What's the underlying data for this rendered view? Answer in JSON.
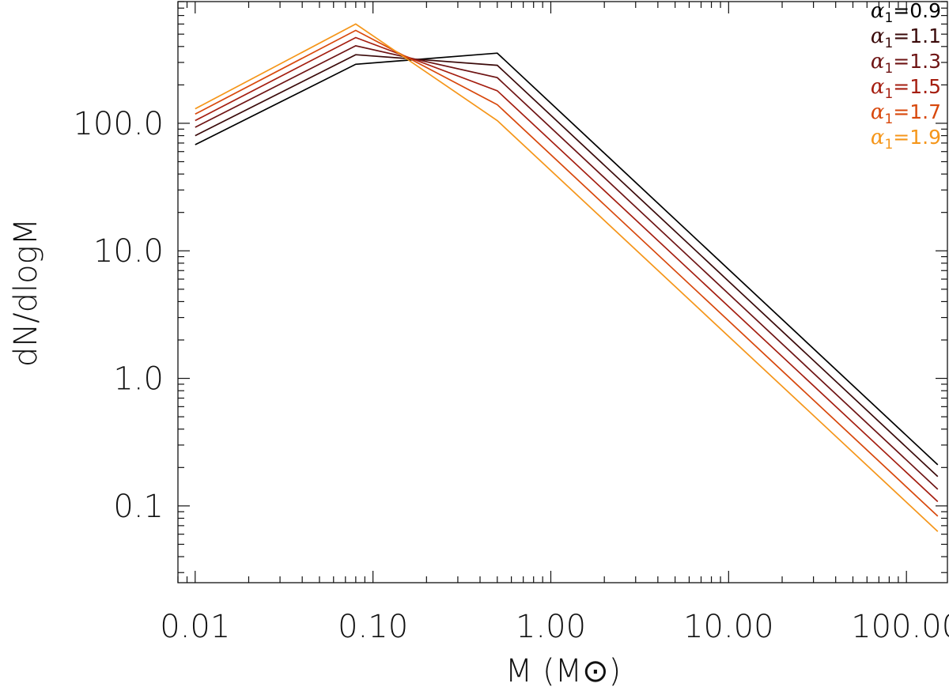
{
  "chart_data": {
    "type": "line",
    "title": "",
    "xlabel": "M (M",
    "xlabel_symbol": "⊙",
    "xlabel_close": ")",
    "ylabel": "dN/dlogM",
    "xscale": "log",
    "yscale": "log",
    "xlim": [
      0.008,
      170
    ],
    "ylim": [
      0.025,
      900
    ],
    "xticks": [
      0.01,
      0.1,
      1,
      10,
      100
    ],
    "xtick_labels": [
      "0.01",
      "0.10",
      "1.00",
      "10.00",
      "100.00"
    ],
    "yticks": [
      0.1,
      1,
      10,
      100
    ],
    "ytick_labels": [
      "0.1",
      "1.0",
      "10.0",
      "100.0"
    ],
    "grid": false,
    "legend_position": "top-right",
    "series": [
      {
        "label_prefix": "α",
        "label_sub": "1",
        "label_value": "=0.9",
        "color": "#000000",
        "x": [
          0.01,
          0.08,
          0.5,
          150
        ],
        "y": [
          68,
          290,
          355,
          0.21
        ]
      },
      {
        "label_prefix": "α",
        "label_sub": "1",
        "label_value": "=1.1",
        "color": "#3a0a0a",
        "x": [
          0.01,
          0.08,
          0.5,
          150
        ],
        "y": [
          80,
          345,
          285,
          0.17
        ]
      },
      {
        "label_prefix": "α",
        "label_sub": "1",
        "label_value": "=1.3",
        "color": "#6e1414",
        "x": [
          0.01,
          0.08,
          0.5,
          150
        ],
        "y": [
          93,
          405,
          228,
          0.135
        ]
      },
      {
        "label_prefix": "α",
        "label_sub": "1",
        "label_value": "=1.5",
        "color": "#a51e10",
        "x": [
          0.01,
          0.08,
          0.5,
          150
        ],
        "y": [
          105,
          470,
          180,
          0.108
        ]
      },
      {
        "label_prefix": "α",
        "label_sub": "1",
        "label_value": "=1.7",
        "color": "#d8480c",
        "x": [
          0.01,
          0.08,
          0.5,
          150
        ],
        "y": [
          118,
          535,
          140,
          0.083
        ]
      },
      {
        "label_prefix": "α",
        "label_sub": "1",
        "label_value": "=1.9",
        "color": "#f5961a",
        "x": [
          0.01,
          0.08,
          0.5,
          150
        ],
        "y": [
          130,
          600,
          105,
          0.063
        ]
      }
    ]
  }
}
